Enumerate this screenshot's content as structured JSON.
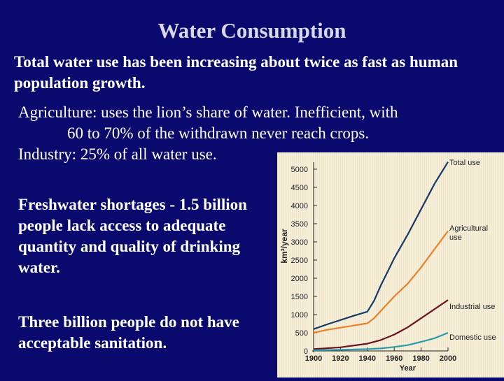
{
  "slide": {
    "title": "Water Consumption",
    "p1": "Total water use has been increasing about twice as fast as human population growth.",
    "agri_label": "Agriculture:",
    "agri_line1": "  uses the lion’s share of water. Inefficient, with",
    "agri_line2": "60 to 70% of the withdrawn never reach crops.",
    "industry_label": "Industry:",
    "industry_text": "  25% of all water use.",
    "p4": "Freshwater shortages - 1.5 billion people lack access to adequate quantity and quality of drinking water.",
    "p5": "Three billion people do not have acceptable sanitation."
  },
  "colors": {
    "background": "#0a0a6e",
    "chart_background": "#f6efdc",
    "total": "#143a66",
    "agricultural": "#e8822a",
    "industrial": "#6e1220",
    "domestic": "#2a9aaa"
  },
  "chart_data": {
    "type": "line",
    "xlabel": "Year",
    "ylabel": "km³/year",
    "xlim": [
      1900,
      2000
    ],
    "ylim": [
      0,
      5000
    ],
    "x_ticks": [
      1900,
      1920,
      1940,
      1960,
      1980,
      2000
    ],
    "y_ticks": [
      0,
      500,
      1000,
      1500,
      2000,
      2500,
      3000,
      3500,
      4000,
      4500,
      5000
    ],
    "x_tick_labels": [
      "1900",
      "1920",
      "1940",
      "1960",
      "1980",
      "2000"
    ],
    "y_tick_labels": [
      "0",
      "500",
      "1000",
      "1500",
      "2000",
      "2500",
      "3000",
      "3500",
      "4000",
      "4500",
      "5000"
    ],
    "series": [
      {
        "name": "Total use",
        "label": [
          "Total use"
        ],
        "color": "#143a66",
        "x": [
          1900,
          1910,
          1920,
          1930,
          1940,
          1945,
          1950,
          1960,
          1970,
          1980,
          1990,
          2000
        ],
        "y": [
          600,
          730,
          850,
          970,
          1080,
          1380,
          1800,
          2550,
          3200,
          3900,
          4600,
          5200
        ]
      },
      {
        "name": "Agricultural use",
        "label": [
          "Agricultural",
          "use"
        ],
        "color": "#e8822a",
        "x": [
          1900,
          1910,
          1920,
          1930,
          1940,
          1945,
          1950,
          1960,
          1970,
          1980,
          1990,
          2000
        ],
        "y": [
          500,
          580,
          640,
          700,
          760,
          900,
          1100,
          1500,
          1850,
          2300,
          2800,
          3300
        ]
      },
      {
        "name": "Industrial use",
        "label": [
          "Industrial use"
        ],
        "color": "#6e1220",
        "x": [
          1900,
          1920,
          1940,
          1950,
          1960,
          1970,
          1980,
          1990,
          2000
        ],
        "y": [
          50,
          100,
          200,
          300,
          450,
          650,
          900,
          1150,
          1400
        ]
      },
      {
        "name": "Domestic use",
        "label": [
          "Domestic use"
        ],
        "color": "#2a9aaa",
        "x": [
          1900,
          1920,
          1940,
          1950,
          1960,
          1970,
          1980,
          1990,
          2000
        ],
        "y": [
          20,
          30,
          50,
          70,
          110,
          160,
          250,
          350,
          500
        ]
      }
    ]
  }
}
